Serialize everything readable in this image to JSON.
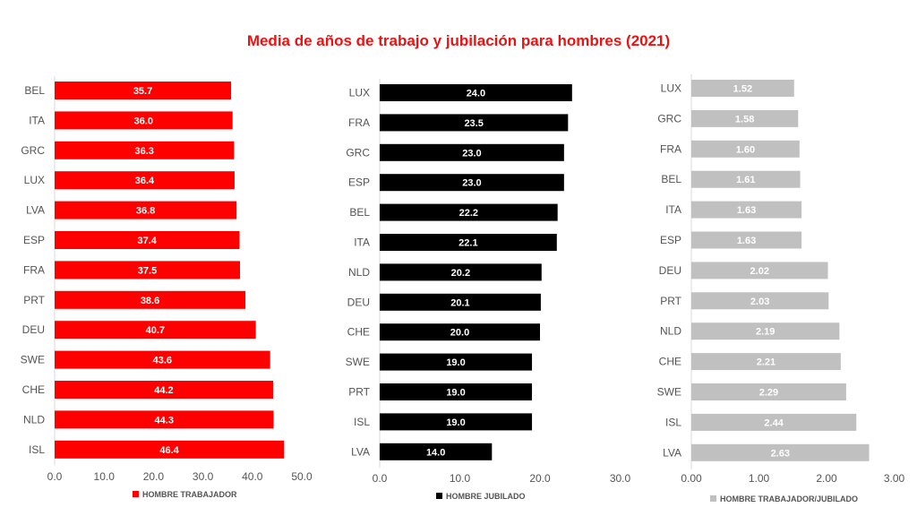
{
  "title": "Media de años de trabajo y jubilación para hombres (2021)",
  "chart_data": [
    {
      "type": "bar",
      "orientation": "horizontal",
      "series_name": "HOMBRE TRABAJADOR",
      "color": "#ff0000",
      "categories": [
        "BEL",
        "ITA",
        "GRC",
        "LUX",
        "LVA",
        "ESP",
        "FRA",
        "PRT",
        "DEU",
        "SWE",
        "CHE",
        "NLD",
        "ISL"
      ],
      "values": [
        35.7,
        36.0,
        36.3,
        36.4,
        36.8,
        37.4,
        37.5,
        38.6,
        40.7,
        43.6,
        44.2,
        44.3,
        46.4
      ],
      "labels": [
        "35.7",
        "36.0",
        "36.3",
        "36.4",
        "36.8",
        "37.4",
        "37.5",
        "38.6",
        "40.7",
        "43.6",
        "44.2",
        "44.3",
        "46.4"
      ],
      "ticks": [
        "0.0",
        "10.0",
        "20.0",
        "30.0",
        "40.0",
        "50.0"
      ],
      "xlim": [
        0,
        50
      ]
    },
    {
      "type": "bar",
      "orientation": "horizontal",
      "series_name": "HOMBRE JUBILADO",
      "color": "#000000",
      "categories": [
        "LUX",
        "FRA",
        "GRC",
        "ESP",
        "BEL",
        "ITA",
        "NLD",
        "DEU",
        "CHE",
        "SWE",
        "PRT",
        "ISL",
        "LVA"
      ],
      "values": [
        24.0,
        23.5,
        23.0,
        23.0,
        22.2,
        22.1,
        20.2,
        20.1,
        20.0,
        19.0,
        19.0,
        19.0,
        14.0
      ],
      "labels": [
        "24.0",
        "23.5",
        "23.0",
        "23.0",
        "22.2",
        "22.1",
        "20.2",
        "20.1",
        "20.0",
        "19.0",
        "19.0",
        "19.0",
        "14.0"
      ],
      "ticks": [
        "0.0",
        "10.0",
        "20.0",
        "30.0"
      ],
      "xlim": [
        0,
        30
      ]
    },
    {
      "type": "bar",
      "orientation": "horizontal",
      "series_name": "HOMBRE TRABAJADOR/JUBILADO",
      "color": "#c0c0c0",
      "categories": [
        "LUX",
        "GRC",
        "FRA",
        "BEL",
        "ITA",
        "ESP",
        "DEU",
        "PRT",
        "NLD",
        "CHE",
        "SWE",
        "ISL",
        "LVA"
      ],
      "values": [
        1.52,
        1.58,
        1.6,
        1.61,
        1.63,
        1.63,
        2.02,
        2.03,
        2.19,
        2.21,
        2.29,
        2.44,
        2.63
      ],
      "labels": [
        "1.52",
        "1.58",
        "1.60",
        "1.61",
        "1.63",
        "1.63",
        "2.02",
        "2.03",
        "2.19",
        "2.21",
        "2.29",
        "2.44",
        "2.63"
      ],
      "ticks": [
        "0.00",
        "1.00",
        "2.00",
        "3.00"
      ],
      "xlim": [
        0,
        3
      ]
    }
  ]
}
